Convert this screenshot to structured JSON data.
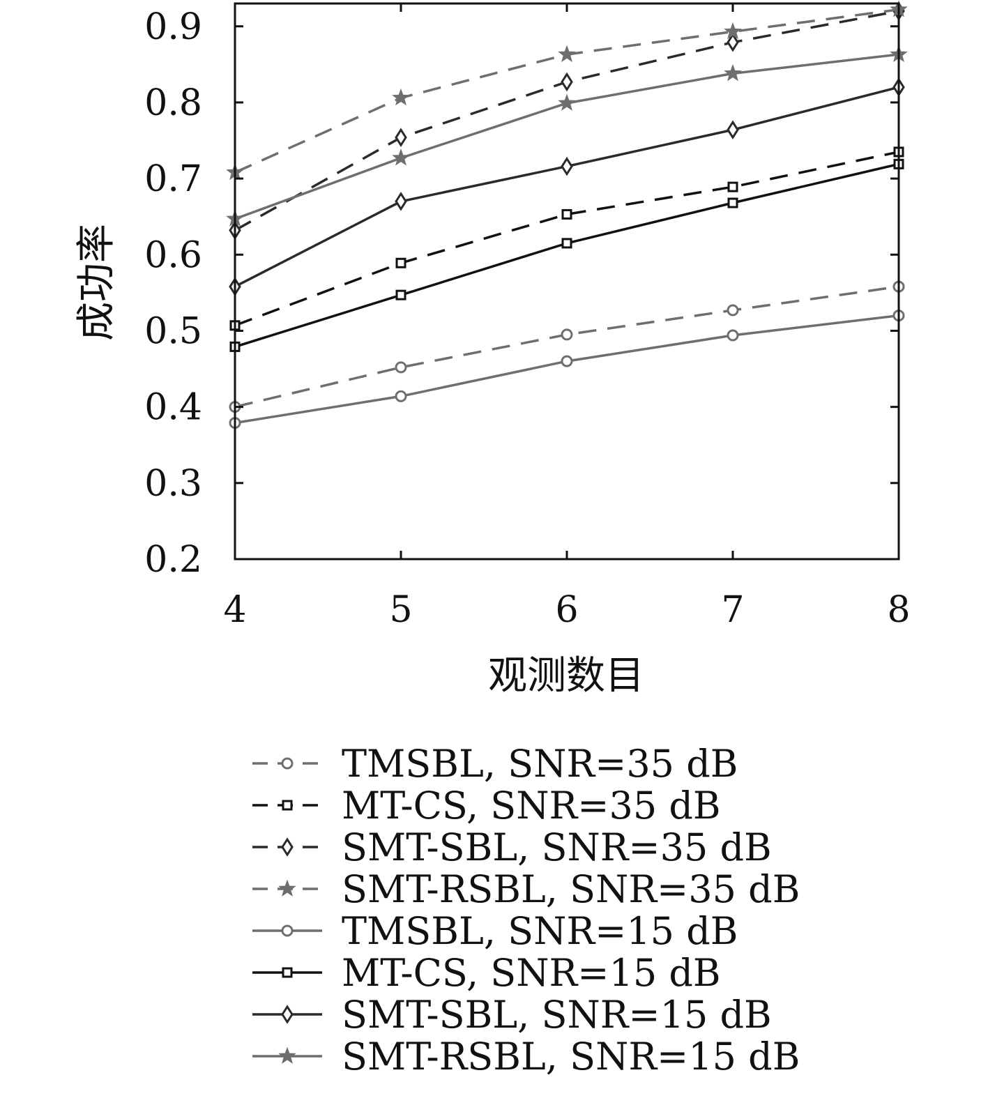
{
  "chart_data": {
    "type": "line",
    "xlabel": "观测数目",
    "ylabel": "成功率",
    "xlim": [
      4,
      8
    ],
    "ylim": [
      0.2,
      0.93
    ],
    "x": [
      4,
      5,
      6,
      7,
      8
    ],
    "xticks": [
      "4",
      "5",
      "6",
      "7",
      "8"
    ],
    "yticks": [
      "0.2",
      "0.3",
      "0.4",
      "0.5",
      "0.6",
      "0.7",
      "0.8",
      "0.9"
    ],
    "grid": false,
    "legend_position": "bottom",
    "series": [
      {
        "name": "TMSBL, SNR=35 dB",
        "values": [
          0.4,
          0.452,
          0.495,
          0.527,
          0.558
        ],
        "color": "#6e6e6e",
        "dash": "dashed",
        "marker": "circle"
      },
      {
        "name": "MT-CS, SNR=35 dB",
        "values": [
          0.507,
          0.589,
          0.653,
          0.689,
          0.735
        ],
        "color": "#111111",
        "dash": "dashed",
        "marker": "square"
      },
      {
        "name": "SMT-SBL, SNR=35 dB",
        "values": [
          0.632,
          0.754,
          0.827,
          0.879,
          0.92
        ],
        "color": "#2a2a2a",
        "dash": "dashed",
        "marker": "diamond"
      },
      {
        "name": "SMT-RSBL, SNR=35 dB",
        "values": [
          0.708,
          0.806,
          0.863,
          0.893,
          0.922
        ],
        "color": "#6e6e6e",
        "dash": "dashed",
        "marker": "star"
      },
      {
        "name": "TMSBL, SNR=15 dB",
        "values": [
          0.379,
          0.414,
          0.46,
          0.494,
          0.52
        ],
        "color": "#6e6e6e",
        "dash": "solid",
        "marker": "circle"
      },
      {
        "name": "MT-CS, SNR=15 dB",
        "values": [
          0.479,
          0.547,
          0.615,
          0.668,
          0.719
        ],
        "color": "#111111",
        "dash": "solid",
        "marker": "square"
      },
      {
        "name": "SMT-SBL, SNR=15 dB",
        "values": [
          0.558,
          0.67,
          0.716,
          0.764,
          0.82
        ],
        "color": "#2a2a2a",
        "dash": "solid",
        "marker": "diamond"
      },
      {
        "name": "SMT-RSBL, SNR=15 dB",
        "values": [
          0.647,
          0.727,
          0.799,
          0.838,
          0.863
        ],
        "color": "#6e6e6e",
        "dash": "solid",
        "marker": "star"
      }
    ]
  }
}
